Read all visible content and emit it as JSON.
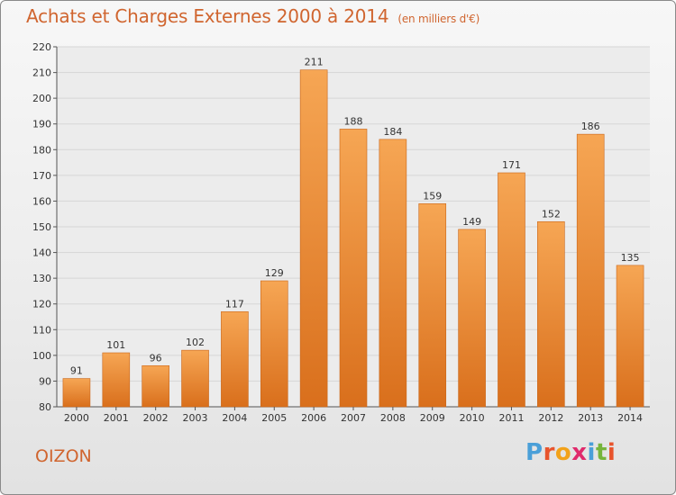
{
  "title": "Achats et Charges Externes 2000 à 2014",
  "unit": "(en milliers d'€)",
  "city": "OIZON",
  "logo": {
    "text": "Proxiti",
    "letters": [
      {
        "ch": "P",
        "color": "#4a9fd8"
      },
      {
        "ch": "r",
        "color": "#e8542c"
      },
      {
        "ch": "o",
        "color": "#f2a21a"
      },
      {
        "ch": "x",
        "color": "#e02a6c"
      },
      {
        "ch": "i",
        "color": "#4a9fd8"
      },
      {
        "ch": "t",
        "color": "#76b43c"
      },
      {
        "ch": "i",
        "color": "#e8542c"
      }
    ]
  },
  "colors": {
    "bar_top": "#f6a654",
    "bar_bottom": "#d96f1c",
    "text": "#333333",
    "accent": "#d0652f"
  },
  "chart_data": {
    "type": "bar",
    "categories": [
      "2000",
      "2001",
      "2002",
      "2003",
      "2004",
      "2005",
      "2006",
      "2007",
      "2008",
      "2009",
      "2010",
      "2011",
      "2012",
      "2013",
      "2014"
    ],
    "values": [
      91,
      101,
      96,
      102,
      117,
      129,
      211,
      188,
      184,
      159,
      149,
      171,
      152,
      186,
      135
    ],
    "ylim": [
      80,
      220
    ],
    "yticks": [
      80,
      90,
      100,
      110,
      120,
      130,
      140,
      150,
      160,
      170,
      180,
      190,
      200,
      210,
      220
    ],
    "grid": true
  }
}
